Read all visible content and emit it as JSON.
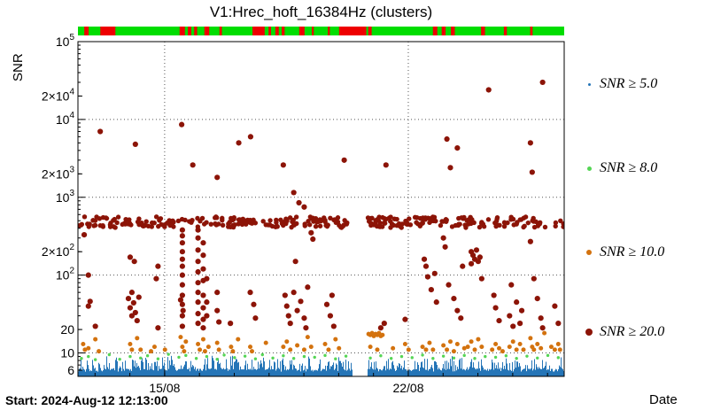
{
  "title": "V1:Hrec_hoft_16384Hz (clusters)",
  "axes": {
    "y_label": "SNR",
    "x_label": "Date"
  },
  "footer": {
    "start_label": "Start: 2024-Aug-12 12:13:00"
  },
  "legend": [
    {
      "label": "SNR ≥ 5.0",
      "color": "#2575b7",
      "size": 3
    },
    {
      "label": "SNR ≥ 8.0",
      "color": "#55d555",
      "size": 5
    },
    {
      "label": "SNR ≥ 10.0",
      "color": "#d3720e",
      "size": 6
    },
    {
      "label": "SNR ≥ 20.0",
      "color": "#8c1407",
      "size": 8
    }
  ],
  "status_bar": {
    "ok_color": "#00dd00",
    "alert_color": "#ee0000",
    "red_segments": [
      [
        0.013,
        0.022
      ],
      [
        0.046,
        0.077
      ],
      [
        0.209,
        0.22
      ],
      [
        0.226,
        0.233
      ],
      [
        0.239,
        0.245
      ],
      [
        0.26,
        0.27
      ],
      [
        0.291,
        0.296
      ],
      [
        0.359,
        0.384
      ],
      [
        0.392,
        0.397
      ],
      [
        0.406,
        0.413
      ],
      [
        0.419,
        0.425
      ],
      [
        0.455,
        0.466
      ],
      [
        0.481,
        0.485
      ],
      [
        0.514,
        0.518
      ],
      [
        0.537,
        0.593
      ],
      [
        0.597,
        0.604
      ],
      [
        0.73,
        0.739
      ],
      [
        0.748,
        0.756
      ],
      [
        0.767,
        0.775
      ],
      [
        0.829,
        0.837
      ],
      [
        0.876,
        0.882
      ],
      [
        0.93,
        0.935
      ]
    ]
  },
  "chart_data": {
    "type": "scatter",
    "title": "V1:Hrec_hoft_16384Hz (clusters)",
    "xlabel": "Date",
    "ylabel": "SNR",
    "x_start_label": "Start: 2024-Aug-12 12:13:00",
    "x_range_days": [
      0,
      13.97
    ],
    "ylog": true,
    "ylim": [
      5,
      100000
    ],
    "grid_y": [
      10,
      100,
      1000,
      10000
    ],
    "day_tick_start": 0.491,
    "xticks": [
      {
        "day": 2.491,
        "label": "15/08"
      },
      {
        "day": 9.491,
        "label": "22/08"
      }
    ],
    "yticks": [
      {
        "v": 100000,
        "base": "10",
        "sup": "5"
      },
      {
        "v": 20000,
        "base": "2×10",
        "sup": "4"
      },
      {
        "v": 10000,
        "base": "10",
        "sup": "4"
      },
      {
        "v": 2000,
        "base": "2×10",
        "sup": "3"
      },
      {
        "v": 1000,
        "base": "10",
        "sup": "3"
      },
      {
        "v": 200,
        "base": "2×10",
        "sup": "2"
      },
      {
        "v": 100,
        "base": "10",
        "sup": "2"
      },
      {
        "v": 20,
        "base": "20"
      },
      {
        "v": 10,
        "base": "10"
      },
      {
        "v": 6,
        "base": "6"
      }
    ],
    "data_gaps_days": [
      [
        7.88,
        8.32
      ]
    ],
    "series": [
      {
        "name": "SNR ≥ 5.0",
        "kind": "noise_floor",
        "color": "#2575b7",
        "snr_floor": [
          5.0,
          6.3
        ],
        "snr_spike_max": 9.3
      },
      {
        "name": "SNR ≥ 8.0",
        "kind": "points",
        "color": "#55d555",
        "marker_r": 1.7,
        "points": [
          [
            0.1,
            8.5
          ],
          [
            0.3,
            9.0
          ],
          [
            0.5,
            8.2
          ],
          [
            0.9,
            9.5
          ],
          [
            1.2,
            8.3
          ],
          [
            1.5,
            9.0
          ],
          [
            1.8,
            8.6
          ],
          [
            2.0,
            9.2
          ],
          [
            2.3,
            8.4
          ],
          [
            2.6,
            9.6
          ],
          [
            2.9,
            8.8
          ],
          [
            3.1,
            9.3
          ],
          [
            3.4,
            8.5
          ],
          [
            3.7,
            9.0
          ],
          [
            4.0,
            8.3
          ],
          [
            4.2,
            9.4
          ],
          [
            4.5,
            8.7
          ],
          [
            4.8,
            9.1
          ],
          [
            5.1,
            8.4
          ],
          [
            5.3,
            9.5
          ],
          [
            5.6,
            8.6
          ],
          [
            5.9,
            9.2
          ],
          [
            6.2,
            8.5
          ],
          [
            6.5,
            9.0
          ],
          [
            6.8,
            8.8
          ],
          [
            7.1,
            9.3
          ],
          [
            7.4,
            8.4
          ],
          [
            7.7,
            9.1
          ],
          [
            8.4,
            8.6
          ],
          [
            8.7,
            9.2
          ],
          [
            9.0,
            8.5
          ],
          [
            9.3,
            9.0
          ],
          [
            9.6,
            8.7
          ],
          [
            9.9,
            9.4
          ],
          [
            10.2,
            8.5
          ],
          [
            10.5,
            9.1
          ],
          [
            10.8,
            8.6
          ],
          [
            11.1,
            9.3
          ],
          [
            11.4,
            8.5
          ],
          [
            11.7,
            9.0
          ],
          [
            12.0,
            8.8
          ],
          [
            12.3,
            9.2
          ],
          [
            12.6,
            8.5
          ],
          [
            12.9,
            9.1
          ],
          [
            13.2,
            8.6
          ],
          [
            13.5,
            9.3
          ],
          [
            13.8,
            8.7
          ]
        ]
      },
      {
        "name": "SNR ≥ 10.0",
        "kind": "points",
        "color": "#d3720e",
        "marker_r": 2.5,
        "points": [
          [
            0.15,
            13
          ],
          [
            0.2,
            11
          ],
          [
            0.3,
            11.5
          ],
          [
            0.5,
            15
          ],
          [
            0.6,
            10.5
          ],
          [
            1.5,
            13
          ],
          [
            1.55,
            11
          ],
          [
            1.7,
            15.5
          ],
          [
            1.8,
            11
          ],
          [
            2.1,
            10.5
          ],
          [
            2.2,
            12
          ],
          [
            2.5,
            11
          ],
          [
            2.95,
            16
          ],
          [
            3.0,
            12
          ],
          [
            3.05,
            10.5
          ],
          [
            3.1,
            14
          ],
          [
            3.45,
            13
          ],
          [
            3.5,
            11
          ],
          [
            3.6,
            15
          ],
          [
            3.65,
            10.5
          ],
          [
            3.75,
            12
          ],
          [
            4.0,
            13.5
          ],
          [
            4.05,
            11
          ],
          [
            4.4,
            12
          ],
          [
            4.45,
            10.5
          ],
          [
            4.6,
            15
          ],
          [
            4.95,
            12
          ],
          [
            5.0,
            10.5
          ],
          [
            5.4,
            13.5
          ],
          [
            5.9,
            12
          ],
          [
            6.0,
            14
          ],
          [
            6.1,
            11
          ],
          [
            6.3,
            12.5
          ],
          [
            6.5,
            11
          ],
          [
            6.6,
            16
          ],
          [
            6.7,
            12
          ],
          [
            7.1,
            13
          ],
          [
            7.2,
            11
          ],
          [
            7.4,
            15
          ],
          [
            7.5,
            11.5
          ],
          [
            8.35,
            17.5
          ],
          [
            8.4,
            17
          ],
          [
            8.45,
            18
          ],
          [
            8.5,
            16.5
          ],
          [
            8.55,
            17.5
          ],
          [
            8.6,
            17
          ],
          [
            8.65,
            18
          ],
          [
            8.7,
            16.5
          ],
          [
            8.75,
            17
          ],
          [
            8.4,
            12
          ],
          [
            8.6,
            11
          ],
          [
            9.05,
            11.5
          ],
          [
            9.4,
            13
          ],
          [
            9.5,
            11
          ],
          [
            9.9,
            12
          ],
          [
            10.0,
            11
          ],
          [
            10.1,
            13.5
          ],
          [
            10.2,
            11
          ],
          [
            10.5,
            12.5
          ],
          [
            10.6,
            11
          ],
          [
            10.7,
            14
          ],
          [
            10.8,
            10.5
          ],
          [
            10.9,
            13
          ],
          [
            11.1,
            11.5
          ],
          [
            11.2,
            12
          ],
          [
            11.3,
            14
          ],
          [
            11.4,
            11
          ],
          [
            11.5,
            15
          ],
          [
            11.6,
            12
          ],
          [
            11.9,
            11
          ],
          [
            12.0,
            13
          ],
          [
            12.1,
            11.5
          ],
          [
            12.2,
            10.5
          ],
          [
            12.4,
            12
          ],
          [
            12.5,
            14
          ],
          [
            12.6,
            11
          ],
          [
            12.7,
            13
          ],
          [
            12.8,
            11
          ],
          [
            13.0,
            15.5
          ],
          [
            13.05,
            12
          ],
          [
            13.1,
            11
          ],
          [
            13.2,
            13
          ],
          [
            13.3,
            11.5
          ],
          [
            13.4,
            18
          ],
          [
            13.6,
            12
          ],
          [
            13.7,
            11
          ],
          [
            13.8,
            13
          ],
          [
            13.85,
            11
          ]
        ]
      },
      {
        "name": "SNR ≥ 20.0",
        "kind": "points",
        "color": "#8c1407",
        "marker_r": 3.1,
        "band": {
          "snr_log_center": 2.68,
          "snr_log_jitter": 0.07,
          "count": 340
        },
        "points": [
          [
            0.64,
            7000
          ],
          [
            1.65,
            4800
          ],
          [
            2.98,
            8600
          ],
          [
            3.3,
            2600
          ],
          [
            4.0,
            1800
          ],
          [
            4.62,
            5000
          ],
          [
            4.96,
            6000
          ],
          [
            5.9,
            2600
          ],
          [
            6.2,
            1150
          ],
          [
            6.35,
            850
          ],
          [
            6.5,
            750
          ],
          [
            7.65,
            3000
          ],
          [
            8.85,
            2600
          ],
          [
            10.6,
            5600
          ],
          [
            10.7,
            2400
          ],
          [
            10.9,
            4300
          ],
          [
            11.8,
            24000
          ],
          [
            13.0,
            5000
          ],
          [
            13.05,
            2100
          ],
          [
            13.35,
            30000
          ],
          [
            0.18,
            330
          ],
          [
            0.3,
            100
          ],
          [
            0.3,
            40
          ],
          [
            0.35,
            46
          ],
          [
            0.5,
            22
          ],
          [
            1.45,
            50
          ],
          [
            1.5,
            170
          ],
          [
            1.5,
            38
          ],
          [
            1.55,
            30
          ],
          [
            1.55,
            60
          ],
          [
            1.6,
            44
          ],
          [
            1.62,
            150
          ],
          [
            1.65,
            33
          ],
          [
            1.7,
            26
          ],
          [
            1.75,
            52
          ],
          [
            2.25,
            90
          ],
          [
            2.3,
            130
          ],
          [
            2.3,
            21
          ],
          [
            2.95,
            48
          ],
          [
            3.0,
            380
          ],
          [
            3.0,
            320
          ],
          [
            3.0,
            260
          ],
          [
            3.0,
            200
          ],
          [
            3.0,
            160
          ],
          [
            3.0,
            130
          ],
          [
            3.0,
            100
          ],
          [
            3.0,
            75
          ],
          [
            3.0,
            55
          ],
          [
            3.0,
            42
          ],
          [
            3.0,
            30
          ],
          [
            3.0,
            22
          ],
          [
            3.02,
            35
          ],
          [
            3.45,
            380
          ],
          [
            3.45,
            300
          ],
          [
            3.45,
            210
          ],
          [
            3.45,
            150
          ],
          [
            3.45,
            110
          ],
          [
            3.45,
            80
          ],
          [
            3.45,
            60
          ],
          [
            3.45,
            45
          ],
          [
            3.45,
            32
          ],
          [
            3.45,
            24
          ],
          [
            3.6,
            260
          ],
          [
            3.6,
            180
          ],
          [
            3.6,
            120
          ],
          [
            3.6,
            85
          ],
          [
            3.6,
            55
          ],
          [
            3.6,
            38
          ],
          [
            3.6,
            27
          ],
          [
            3.6,
            21
          ],
          [
            3.7,
            90
          ],
          [
            3.7,
            45
          ],
          [
            3.7,
            30
          ],
          [
            4.0,
            60
          ],
          [
            4.0,
            35
          ],
          [
            4.05,
            25
          ],
          [
            4.38,
            24
          ],
          [
            4.95,
            60
          ],
          [
            5.05,
            42
          ],
          [
            5.1,
            28
          ],
          [
            5.95,
            55
          ],
          [
            6.0,
            40
          ],
          [
            6.05,
            30
          ],
          [
            6.1,
            24
          ],
          [
            6.2,
            60
          ],
          [
            6.25,
            150
          ],
          [
            6.3,
            35
          ],
          [
            6.4,
            46
          ],
          [
            6.5,
            28
          ],
          [
            6.55,
            21
          ],
          [
            6.6,
            70
          ],
          [
            6.7,
            350
          ],
          [
            6.75,
            290
          ],
          [
            7.15,
            42
          ],
          [
            7.25,
            30
          ],
          [
            7.3,
            55
          ],
          [
            7.35,
            22
          ],
          [
            8.7,
            21
          ],
          [
            8.8,
            24
          ],
          [
            9.4,
            27
          ],
          [
            9.95,
            160
          ],
          [
            10.0,
            130
          ],
          [
            10.05,
            95
          ],
          [
            10.15,
            65
          ],
          [
            10.25,
            105
          ],
          [
            10.3,
            45
          ],
          [
            10.5,
            300
          ],
          [
            10.55,
            230
          ],
          [
            10.65,
            75
          ],
          [
            10.8,
            50
          ],
          [
            10.9,
            35
          ],
          [
            11.0,
            28
          ],
          [
            11.05,
            130
          ],
          [
            11.3,
            200
          ],
          [
            11.3,
            140
          ],
          [
            11.35,
            180
          ],
          [
            11.4,
            160
          ],
          [
            11.45,
            210
          ],
          [
            11.5,
            150
          ],
          [
            11.55,
            170
          ],
          [
            11.6,
            90
          ],
          [
            11.95,
            55
          ],
          [
            12.0,
            38
          ],
          [
            12.1,
            26
          ],
          [
            12.4,
            30
          ],
          [
            12.45,
            75
          ],
          [
            12.5,
            22
          ],
          [
            12.6,
            45
          ],
          [
            12.7,
            24
          ],
          [
            12.75,
            35
          ],
          [
            13.0,
            270
          ],
          [
            13.1,
            90
          ],
          [
            13.2,
            50
          ],
          [
            13.3,
            28
          ],
          [
            13.35,
            21
          ],
          [
            13.7,
            40
          ],
          [
            13.8,
            24
          ]
        ]
      }
    ]
  }
}
